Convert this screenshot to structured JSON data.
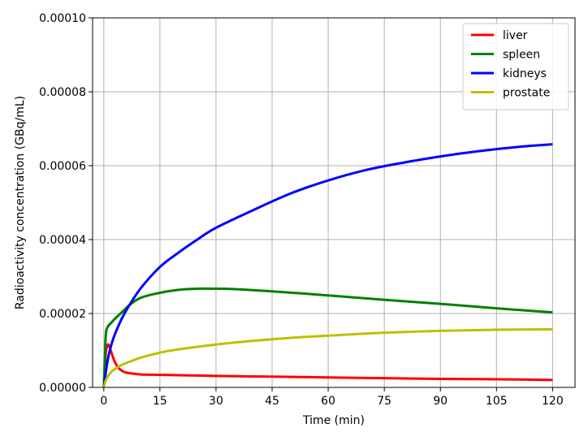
{
  "chart_data": {
    "type": "line",
    "xlabel": "Time (min)",
    "ylabel": "Radioactivity concentration (GBq/mL)",
    "xlim": [
      -3,
      126
    ],
    "ylim": [
      0,
      0.0001
    ],
    "xticks": [
      0,
      15,
      30,
      45,
      60,
      75,
      90,
      105,
      120
    ],
    "xtick_labels": [
      "0",
      "15",
      "30",
      "45",
      "60",
      "75",
      "90",
      "105",
      "120"
    ],
    "yticks": [
      0,
      2e-05,
      4e-05,
      6e-05,
      8e-05,
      0.0001
    ],
    "ytick_labels": [
      "0.00000",
      "0.00002",
      "0.00004",
      "0.00006",
      "0.00008",
      "0.00010"
    ],
    "grid": true,
    "legend_position": "top-right",
    "series": [
      {
        "name": "liver",
        "color": "#ff0000",
        "x": [
          0,
          0.5,
          1,
          1.5,
          2,
          3,
          4,
          5,
          6,
          8,
          10,
          15,
          20,
          30,
          45,
          60,
          75,
          90,
          105,
          120
        ],
        "y": [
          0,
          9e-06,
          1.15e-05,
          1.1e-05,
          9.5e-06,
          6.8e-06,
          5.2e-06,
          4.4e-06,
          4e-06,
          3.7e-06,
          3.5e-06,
          3.4e-06,
          3.3e-06,
          3.1e-06,
          2.9e-06,
          2.7e-06,
          2.5e-06,
          2.3e-06,
          2.2e-06,
          2e-06
        ]
      },
      {
        "name": "spleen",
        "color": "#008000",
        "x": [
          0,
          0.5,
          1,
          2,
          3,
          5,
          7,
          10,
          15,
          20,
          25,
          30,
          35,
          45,
          60,
          75,
          90,
          105,
          120
        ],
        "y": [
          0,
          1.35e-05,
          1.63e-05,
          1.75e-05,
          1.86e-05,
          2.05e-05,
          2.24e-05,
          2.43e-05,
          2.56e-05,
          2.64e-05,
          2.67e-05,
          2.67e-05,
          2.66e-05,
          2.6e-05,
          2.49e-05,
          2.37e-05,
          2.26e-05,
          2.14e-05,
          2.03e-05
        ]
      },
      {
        "name": "kidneys",
        "color": "#0000ff",
        "x": [
          0,
          1,
          2,
          3,
          5,
          7,
          10,
          15,
          20,
          25,
          30,
          40,
          50,
          60,
          70,
          80,
          90,
          100,
          110,
          120
        ],
        "y": [
          0,
          7.2e-06,
          1.15e-05,
          1.45e-05,
          1.9e-05,
          2.25e-05,
          2.7e-05,
          3.26e-05,
          3.65e-05,
          4e-05,
          4.32e-05,
          4.8e-05,
          5.25e-05,
          5.6e-05,
          5.88e-05,
          6.08e-05,
          6.25e-05,
          6.39e-05,
          6.5e-05,
          6.58e-05
        ]
      },
      {
        "name": "prostate",
        "color": "#bfbf00",
        "x": [
          0,
          0.5,
          1,
          2,
          3,
          5,
          7,
          10,
          15,
          20,
          30,
          40,
          50,
          60,
          75,
          90,
          105,
          120
        ],
        "y": [
          0,
          1.8e-06,
          2.8e-06,
          4.2e-06,
          5e-06,
          6.2e-06,
          7e-06,
          8.1e-06,
          9.4e-06,
          1.03e-05,
          1.16e-05,
          1.26e-05,
          1.34e-05,
          1.4e-05,
          1.48e-05,
          1.53e-05,
          1.56e-05,
          1.57e-05
        ]
      }
    ]
  }
}
